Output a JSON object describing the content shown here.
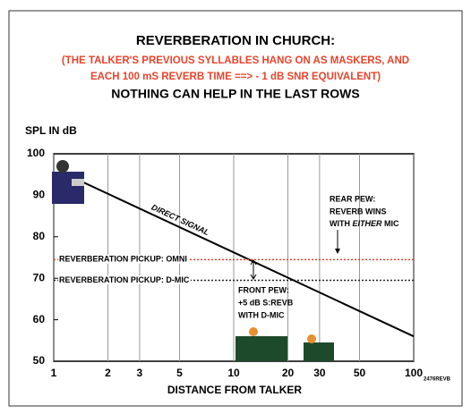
{
  "chart_data": {
    "type": "line",
    "title": "REVERBERATION IN CHURCH:",
    "subtitle_lines": [
      "(THE TALKER'S PREVIOUS SYLLABLES HANG ON AS MASKERS, AND",
      "EACH 100 mS REVERB TIME ==> - 1 dB SNR EQUIVALENT)"
    ],
    "headline": "NOTHING CAN HELP IN THE LAST ROWS",
    "ylabel": "SPL IN dB",
    "xlabel": "DISTANCE FROM TALKER",
    "code": "2476REVB",
    "log_x": true,
    "xlim": [
      1,
      100
    ],
    "xticks": [
      1,
      2,
      3,
      5,
      10,
      20,
      30,
      50,
      100
    ],
    "ylim": [
      50,
      100
    ],
    "yticks": [
      50,
      60,
      70,
      80,
      90,
      100
    ],
    "series": [
      {
        "label": "DIRECT SIGNAL",
        "color": "#000000",
        "style": "solid",
        "x": [
          1.4,
          100
        ],
        "values": [
          93.5,
          56
        ]
      },
      {
        "label": "REVERBERATION PICKUP: OMNI",
        "color": "#e8442c",
        "style": "dotted",
        "x": [
          1,
          100
        ],
        "values": [
          74.5,
          74.5
        ]
      },
      {
        "label": "REVERBERATION PICKUP: D-MIC",
        "color": "#222222",
        "style": "dotted",
        "x": [
          1,
          100
        ],
        "values": [
          69.5,
          69.5
        ]
      }
    ],
    "annotations": {
      "rear_pew": [
        "REAR PEW:",
        "REVERB WINS"
      ],
      "rear_pew_last": [
        "WITH ",
        "EITHER",
        " MIC"
      ],
      "front_pew": [
        "FRONT PEW:",
        "+5 dB S:REVB",
        "WITH D-MIC"
      ]
    }
  }
}
